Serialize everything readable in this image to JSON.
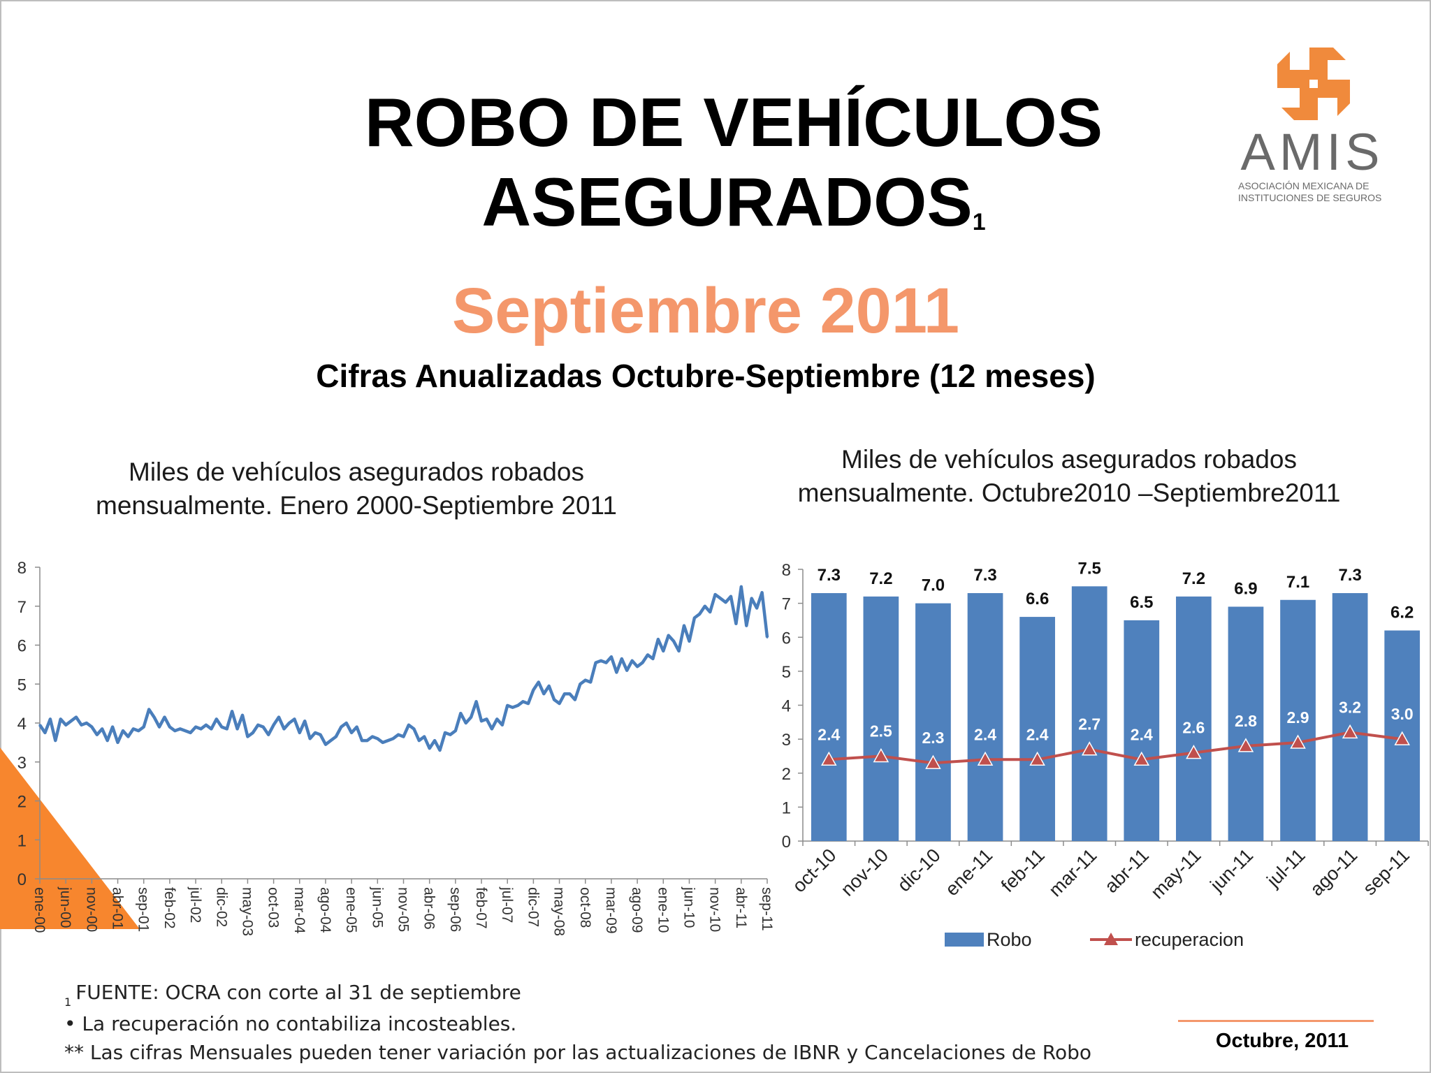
{
  "header": {
    "title_line1": "ROBO DE VEHÍCULOS",
    "title_line2": "ASEGURADOS",
    "title_footnote": "1",
    "period": "Septiembre 2011",
    "subtitle": "Cifras Anualizadas Octubre-Septiembre (12 meses)"
  },
  "logo": {
    "name": "AMIS",
    "subtitle_line1": "ASOCIACIÓN MEXICANA DE",
    "subtitle_line2": "INSTITUCIONES DE SEGUROS",
    "icon": "amis-logo-icon",
    "color": "#f08a3c"
  },
  "colors": {
    "line": "#4a7ebb",
    "bar": "#4f81bd",
    "recovery": "#c0504d",
    "accent": "#f4976b",
    "corner": "#f7862e"
  },
  "chart_data": [
    {
      "type": "line",
      "title": "Miles de vehículos asegurados robados mensualmente. Enero 2000-Septiembre 2011",
      "ylim": [
        0,
        8
      ],
      "yticks": [
        "0",
        "1",
        "2",
        "3",
        "4",
        "5",
        "6",
        "7",
        "8"
      ],
      "xticks": [
        "ene-00",
        "jun-00",
        "nov-00",
        "abr-01",
        "sep-01",
        "feb-02",
        "jul-02",
        "dic-02",
        "may-03",
        "oct-03",
        "mar-04",
        "ago-04",
        "ene-05",
        "jun-05",
        "nov-05",
        "abr-06",
        "sep-06",
        "feb-07",
        "jul-07",
        "dic-07",
        "may-08",
        "oct-08",
        "mar-09",
        "ago-09",
        "ene-10",
        "jun-10",
        "nov-10",
        "abr-11",
        "sep-11"
      ],
      "grid": false,
      "series": [
        {
          "values": [
            3.95,
            3.75,
            4.1,
            3.55,
            4.1,
            3.95,
            4.05,
            4.15,
            3.95,
            4.0,
            3.9,
            3.7,
            3.85,
            3.55,
            3.9,
            3.5,
            3.8,
            3.65,
            3.85,
            3.8,
            3.9,
            4.35,
            4.15,
            3.9,
            4.15,
            3.9,
            3.8,
            3.85,
            3.8,
            3.75,
            3.9,
            3.85,
            3.95,
            3.85,
            4.1,
            3.9,
            3.85,
            4.3,
            3.85,
            4.2,
            3.65,
            3.75,
            3.95,
            3.9,
            3.7,
            3.95,
            4.15,
            3.85,
            4.0,
            4.1,
            3.75,
            4.05,
            3.6,
            3.75,
            3.7,
            3.45,
            3.55,
            3.65,
            3.9,
            4.0,
            3.75,
            3.9,
            3.55,
            3.55,
            3.65,
            3.6,
            3.5,
            3.55,
            3.6,
            3.7,
            3.65,
            3.95,
            3.85,
            3.55,
            3.65,
            3.35,
            3.55,
            3.3,
            3.75,
            3.7,
            3.8,
            4.25,
            4.0,
            4.15,
            4.55,
            4.05,
            4.1,
            3.85,
            4.1,
            3.95,
            4.45,
            4.4,
            4.45,
            4.55,
            4.5,
            4.85,
            5.05,
            4.75,
            4.95,
            4.6,
            4.5,
            4.75,
            4.75,
            4.6,
            5.0,
            5.1,
            5.05,
            5.55,
            5.6,
            5.55,
            5.7,
            5.3,
            5.65,
            5.35,
            5.6,
            5.45,
            5.55,
            5.75,
            5.65,
            6.15,
            5.85,
            6.25,
            6.1,
            5.85,
            6.5,
            6.1,
            6.7,
            6.8,
            7.0,
            6.85,
            7.3,
            7.2,
            7.1,
            7.25,
            6.55,
            7.5,
            6.5,
            7.2,
            6.95,
            7.35,
            6.2
          ]
        }
      ]
    },
    {
      "type": "bar",
      "title": "Miles de vehículos asegurados robados mensualmente. Octubre2010 –Septiembre2011",
      "categories": [
        "oct-10",
        "nov-10",
        "dic-10",
        "ene-11",
        "feb-11",
        "mar-11",
        "abr-11",
        "may-11",
        "jun-11",
        "jul-11",
        "ago-11",
        "sep-11"
      ],
      "ylim": [
        0,
        8
      ],
      "yticks": [
        "0",
        "1",
        "2",
        "3",
        "4",
        "5",
        "6",
        "7",
        "8"
      ],
      "grid": false,
      "legend": "bottom",
      "series": [
        {
          "name": "Robo",
          "type": "bar",
          "values": [
            7.3,
            7.2,
            7.0,
            7.3,
            6.6,
            7.5,
            6.5,
            7.2,
            6.9,
            7.1,
            7.3,
            6.2
          ],
          "labels": [
            "7.3",
            "7.2",
            "7.0",
            "7.3",
            "6.6",
            "7.5",
            "6.5",
            "7.2",
            "6.9",
            "7.1",
            "7.3",
            "6.2"
          ]
        },
        {
          "name": "recuperacion",
          "type": "line",
          "values": [
            2.4,
            2.5,
            2.3,
            2.4,
            2.4,
            2.7,
            2.4,
            2.6,
            2.8,
            2.9,
            3.2,
            3.0
          ],
          "labels": [
            "2.4",
            "2.5",
            "2.3",
            "2.4",
            "2.4",
            "2.7",
            "2.4",
            "2.6",
            "2.8",
            "2.9",
            "3.2",
            "3.0"
          ]
        }
      ]
    }
  ],
  "notes": {
    "footnote_mark": "1",
    "source": "FUENTE: OCRA con corte al 31 de septiembre",
    "bullet": "• La recuperación no contabiliza incosteables.",
    "monthly": "** Las cifras Mensuales pueden tener variación por las actualizaciones de IBNR y Cancelaciones de Robo"
  },
  "footer": {
    "date": "Octubre, 2011"
  }
}
